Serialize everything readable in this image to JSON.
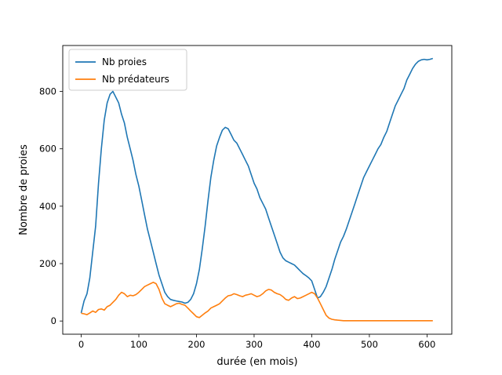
{
  "chart_data": {
    "type": "line",
    "title": "",
    "xlabel": "durée (en mois)",
    "ylabel": "Nombre de proies",
    "xlim": [
      -32,
      643
    ],
    "ylim": [
      -46,
      960
    ],
    "xticks": [
      0,
      100,
      200,
      300,
      400,
      500,
      600
    ],
    "yticks": [
      0,
      200,
      400,
      600,
      800
    ],
    "grid": false,
    "legend_position": "top-left",
    "series": [
      {
        "name": "Nb proies",
        "color": "#1f77b4",
        "x": [
          0,
          5,
          10,
          15,
          20,
          25,
          30,
          35,
          40,
          45,
          50,
          55,
          60,
          65,
          70,
          75,
          80,
          85,
          90,
          95,
          100,
          105,
          110,
          115,
          120,
          125,
          130,
          135,
          140,
          145,
          150,
          155,
          160,
          165,
          170,
          175,
          180,
          185,
          190,
          195,
          200,
          205,
          210,
          215,
          220,
          225,
          230,
          235,
          240,
          245,
          250,
          255,
          260,
          265,
          270,
          275,
          280,
          285,
          290,
          295,
          300,
          305,
          310,
          315,
          320,
          325,
          330,
          335,
          340,
          345,
          350,
          355,
          360,
          365,
          370,
          375,
          380,
          385,
          390,
          395,
          400,
          405,
          410,
          415,
          420,
          425,
          430,
          435,
          440,
          445,
          450,
          455,
          460,
          465,
          470,
          475,
          480,
          485,
          490,
          495,
          500,
          505,
          510,
          515,
          520,
          525,
          530,
          535,
          540,
          545,
          550,
          555,
          560,
          565,
          570,
          575,
          580,
          585,
          590,
          595,
          600,
          605,
          610
        ],
        "values": [
          28,
          70,
          95,
          150,
          240,
          330,
          480,
          600,
          700,
          760,
          790,
          800,
          780,
          760,
          720,
          690,
          640,
          600,
          560,
          510,
          470,
          420,
          370,
          320,
          280,
          240,
          200,
          160,
          130,
          100,
          85,
          75,
          72,
          70,
          68,
          66,
          62,
          65,
          75,
          95,
          130,
          180,
          250,
          330,
          420,
          500,
          560,
          610,
          640,
          665,
          675,
          670,
          650,
          630,
          620,
          600,
          580,
          560,
          540,
          510,
          480,
          460,
          430,
          410,
          390,
          360,
          330,
          300,
          270,
          240,
          220,
          210,
          205,
          200,
          195,
          185,
          175,
          165,
          158,
          150,
          140,
          110,
          80,
          85,
          100,
          120,
          150,
          180,
          215,
          245,
          275,
          295,
          320,
          350,
          380,
          410,
          440,
          470,
          500,
          520,
          540,
          560,
          580,
          600,
          615,
          640,
          660,
          690,
          720,
          750,
          770,
          790,
          810,
          840,
          860,
          880,
          895,
          905,
          910,
          912,
          910,
          912,
          915
        ]
      },
      {
        "name": "Nb prédateurs",
        "color": "#ff7f0e",
        "x": [
          0,
          5,
          10,
          15,
          20,
          25,
          30,
          35,
          40,
          45,
          50,
          55,
          60,
          65,
          70,
          75,
          80,
          85,
          90,
          95,
          100,
          105,
          110,
          115,
          120,
          125,
          130,
          135,
          140,
          145,
          150,
          155,
          160,
          165,
          170,
          175,
          180,
          185,
          190,
          195,
          200,
          205,
          210,
          215,
          220,
          225,
          230,
          235,
          240,
          245,
          250,
          255,
          260,
          265,
          270,
          275,
          280,
          285,
          290,
          295,
          300,
          305,
          310,
          315,
          320,
          325,
          330,
          335,
          340,
          345,
          350,
          355,
          360,
          365,
          370,
          375,
          380,
          385,
          390,
          395,
          400,
          405,
          410,
          415,
          420,
          425,
          430,
          435,
          440,
          445,
          450,
          455,
          460,
          465,
          470,
          475,
          480,
          485,
          490,
          495,
          500,
          505,
          510,
          515,
          520,
          525,
          530,
          535,
          540,
          545,
          550,
          555,
          560,
          565,
          570,
          575,
          580,
          585,
          590,
          595,
          600,
          605,
          610
        ],
        "values": [
          27,
          25,
          22,
          28,
          35,
          30,
          40,
          42,
          38,
          50,
          55,
          65,
          75,
          90,
          100,
          95,
          85,
          90,
          88,
          92,
          100,
          110,
          120,
          125,
          130,
          135,
          130,
          110,
          80,
          60,
          55,
          50,
          55,
          60,
          62,
          58,
          55,
          45,
          35,
          25,
          15,
          12,
          20,
          28,
          35,
          45,
          50,
          55,
          60,
          70,
          80,
          88,
          90,
          95,
          92,
          88,
          85,
          90,
          92,
          95,
          90,
          85,
          88,
          95,
          105,
          110,
          108,
          100,
          95,
          92,
          85,
          75,
          72,
          80,
          85,
          78,
          80,
          85,
          90,
          95,
          100,
          95,
          80,
          60,
          40,
          20,
          10,
          6,
          4,
          3,
          2,
          1,
          1,
          1,
          1,
          1,
          1,
          1,
          1,
          1,
          1,
          1,
          1,
          1,
          1,
          1,
          1,
          1,
          1,
          1,
          1,
          1,
          1,
          1,
          1,
          1,
          1,
          1,
          1,
          1,
          1,
          1,
          1
        ]
      }
    ]
  }
}
